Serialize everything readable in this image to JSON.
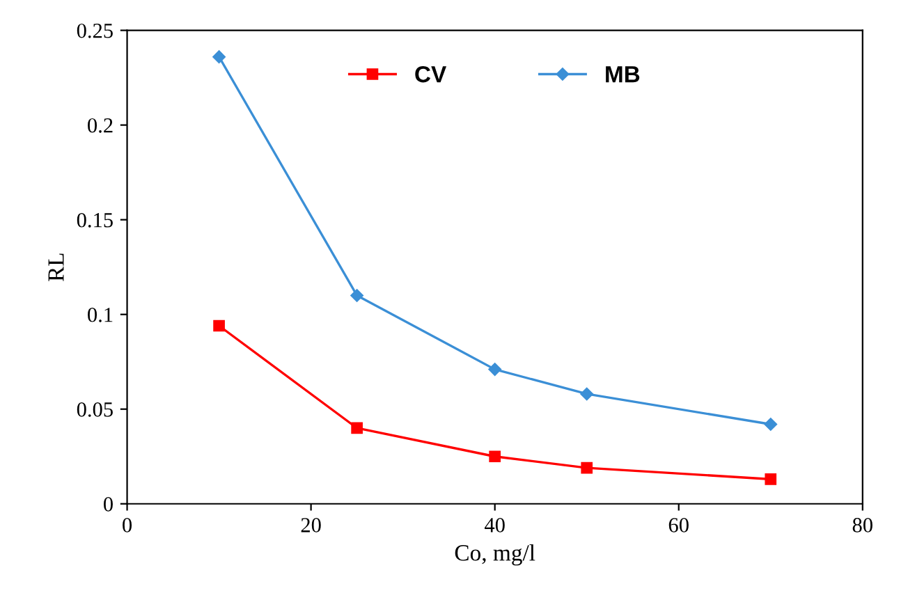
{
  "chart_data": {
    "type": "line",
    "xlabel": "Co, mg/l",
    "ylabel": "RL",
    "x": [
      10,
      25,
      40,
      50,
      70
    ],
    "series": [
      {
        "name": "CV",
        "color": "#ff0000",
        "marker": "square",
        "values": [
          0.094,
          0.04,
          0.025,
          0.019,
          0.013
        ]
      },
      {
        "name": "MB",
        "color": "#3b8fd6",
        "marker": "diamond",
        "values": [
          0.236,
          0.11,
          0.071,
          0.058,
          0.042
        ]
      }
    ],
    "xlim": [
      0,
      80
    ],
    "xticks": [
      0,
      20,
      40,
      60,
      80
    ],
    "ylim": [
      0,
      0.25
    ],
    "yticks": [
      0,
      0.05,
      0.1,
      0.15,
      0.2,
      0.25
    ],
    "grid": false,
    "legend": "top",
    "line_style": "solid"
  }
}
